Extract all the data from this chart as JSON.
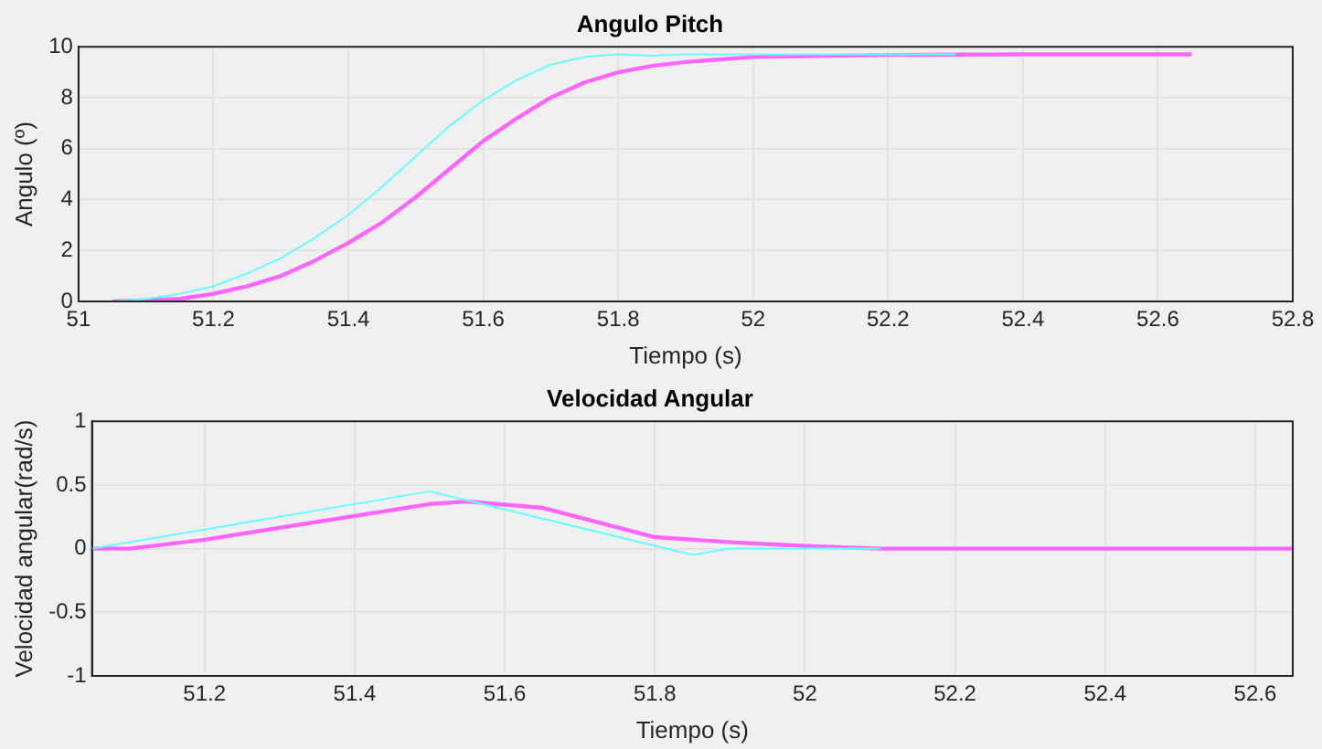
{
  "chart_data": [
    {
      "type": "line",
      "title": "Angulo Pitch",
      "xlabel": "Tiempo (s)",
      "ylabel": "Angulo (º)",
      "xlim": [
        51,
        52.8
      ],
      "xticks": [
        51,
        51.2,
        51.4,
        51.6,
        51.8,
        52,
        52.2,
        52.4,
        52.6,
        52.8
      ],
      "ylim": [
        0,
        10
      ],
      "yticks": [
        0,
        2,
        4,
        6,
        8,
        10
      ],
      "grid": true,
      "legend": false,
      "marker": "none",
      "line_style": "solid",
      "series": [
        {
          "color": "#66ffff",
          "x": [
            51.05,
            51.1,
            51.15,
            51.2,
            51.25,
            51.3,
            51.35,
            51.4,
            51.45,
            51.5,
            51.55,
            51.6,
            51.65,
            51.7,
            51.75,
            51.8,
            51.85,
            51.9,
            52,
            52.3
          ],
          "values": [
            0,
            0.1,
            0.3,
            0.6,
            1.1,
            1.7,
            2.5,
            3.4,
            4.5,
            5.7,
            6.9,
            7.9,
            8.7,
            9.3,
            9.6,
            9.7,
            9.65,
            9.7,
            9.7,
            9.7
          ]
        },
        {
          "color": "#ff66ff",
          "x": [
            51.05,
            51.1,
            51.15,
            51.2,
            51.25,
            51.3,
            51.35,
            51.4,
            51.45,
            51.5,
            51.55,
            51.6,
            51.65,
            51.7,
            51.75,
            51.8,
            51.85,
            51.9,
            52,
            52.2,
            52.4,
            52.65
          ],
          "values": [
            0,
            0.05,
            0.1,
            0.3,
            0.6,
            1,
            1.6,
            2.3,
            3.1,
            4.1,
            5.2,
            6.3,
            7.2,
            8,
            8.6,
            9,
            9.25,
            9.4,
            9.6,
            9.68,
            9.7,
            9.7
          ]
        }
      ]
    },
    {
      "type": "line",
      "title": "Velocidad Angular",
      "xlabel": "Tiempo (s)",
      "ylabel": "Velocidad angular(rad/s)",
      "xlim": [
        51.05,
        52.65
      ],
      "xticks": [
        51.2,
        51.4,
        51.6,
        51.8,
        52,
        52.2,
        52.4,
        52.6
      ],
      "ylim": [
        -1,
        1
      ],
      "yticks": [
        -1,
        -0.5,
        0,
        0.5,
        1
      ],
      "grid": true,
      "legend": false,
      "marker": "none",
      "line_style": "solid",
      "series": [
        {
          "color": "#66ffff",
          "x": [
            51.05,
            51.5,
            51.85,
            51.9,
            52.1
          ],
          "values": [
            0,
            0.45,
            -0.05,
            0,
            0
          ]
        },
        {
          "color": "#ff66ff",
          "x": [
            51.05,
            51.1,
            51.2,
            51.5,
            51.55,
            51.65,
            51.8,
            51.9,
            52,
            52.1,
            52.65
          ],
          "values": [
            0,
            0,
            0.07,
            0.35,
            0.37,
            0.32,
            0.09,
            0.05,
            0.02,
            0,
            0
          ]
        }
      ]
    }
  ]
}
